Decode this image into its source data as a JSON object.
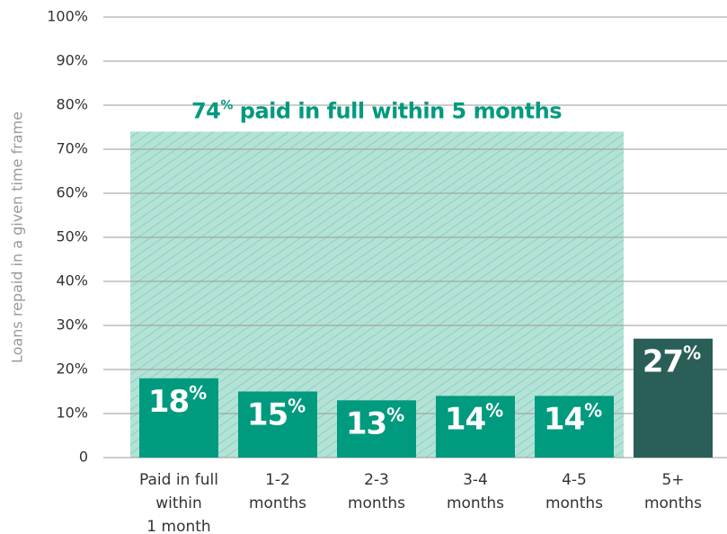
{
  "chart_data": {
    "type": "bar",
    "y_axis_label": "Loans repaid in a given time frame",
    "categories": [
      [
        "Paid in full",
        "within",
        "1 month"
      ],
      [
        "1-2",
        "months"
      ],
      [
        "2-3",
        "months"
      ],
      [
        "3-4",
        "months"
      ],
      [
        "4-5",
        "months"
      ],
      [
        "5+",
        "months"
      ]
    ],
    "values": [
      18,
      15,
      13,
      14,
      14,
      27
    ],
    "value_labels": [
      "18%",
      "15%",
      "13%",
      "14%",
      "14%",
      "27%"
    ],
    "colors": [
      "#009a7e",
      "#009a7e",
      "#009a7e",
      "#009a7e",
      "#009a7e",
      "#2a5f57"
    ],
    "annotation": {
      "text": "74% paid in full within 5 months",
      "value": 74,
      "span": 5,
      "color": "#009a7e"
    },
    "ylim": [
      0,
      100
    ],
    "yticks": [
      {
        "value": 0,
        "label": "0"
      },
      {
        "value": 10,
        "label": "10%"
      },
      {
        "value": 20,
        "label": "20%"
      },
      {
        "value": 30,
        "label": "30%"
      },
      {
        "value": 40,
        "label": "40%"
      },
      {
        "value": 50,
        "label": "50%"
      },
      {
        "value": 60,
        "label": "60%"
      },
      {
        "value": 70,
        "label": "70%"
      },
      {
        "value": 80,
        "label": "80%"
      },
      {
        "value": 90,
        "label": "90%"
      },
      {
        "value": 100,
        "label": "100%"
      }
    ],
    "grid": true
  }
}
